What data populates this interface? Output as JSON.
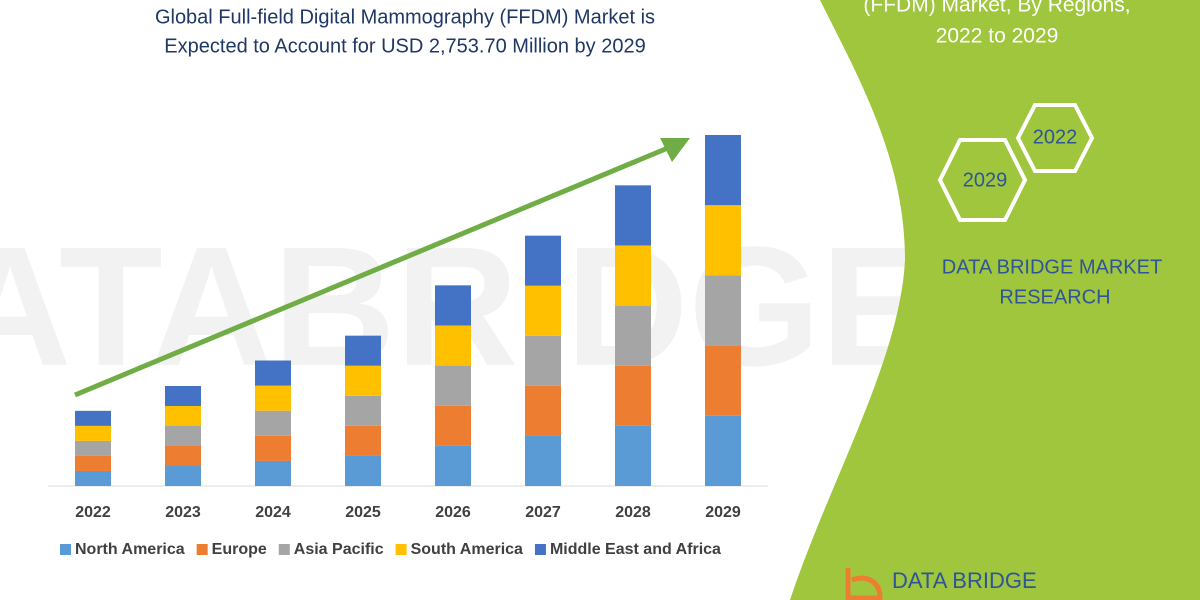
{
  "chart_data": {
    "type": "bar",
    "stacked": true,
    "title": [
      "Global Full-field Digital Mammography (FFDM) Market is",
      "Expected to Account for USD 2,753.70 Million by 2029"
    ],
    "categories": [
      "2022",
      "2023",
      "2024",
      "2025",
      "2026",
      "2027",
      "2028",
      "2029"
    ],
    "series": [
      {
        "name": "North America",
        "color": "#5b9bd5",
        "values": [
          118,
          157,
          197,
          236,
          315,
          393,
          472,
          551
        ]
      },
      {
        "name": "Europe",
        "color": "#ed7d31",
        "values": [
          118,
          157,
          197,
          236,
          315,
          393,
          472,
          551
        ]
      },
      {
        "name": "Asia Pacific",
        "color": "#a5a5a5",
        "values": [
          118,
          157,
          197,
          236,
          315,
          393,
          472,
          551
        ]
      },
      {
        "name": "South America",
        "color": "#ffc000",
        "values": [
          118,
          157,
          197,
          236,
          315,
          393,
          472,
          551
        ]
      },
      {
        "name": "Middle East and Africa",
        "color": "#4472c4",
        "values": [
          118,
          157,
          197,
          236,
          315,
          393,
          472,
          551
        ]
      }
    ],
    "legend": "bottom",
    "grid": false
  },
  "panel": {
    "heading": [
      "(FFDM) Market, By Regions,",
      "2022 to 2029"
    ],
    "hexagons": [
      "2022",
      "2029"
    ],
    "brand": [
      "DATA BRIDGE MARKET",
      "RESEARCH"
    ],
    "logo": "DATA BRIDGE"
  }
}
